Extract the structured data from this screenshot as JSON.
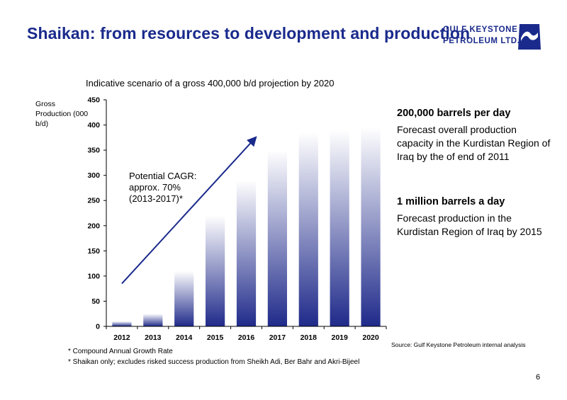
{
  "page": {
    "title": "Shaikan: from resources to development and production",
    "logo": {
      "line1": "GULF KEYSTONE",
      "line2": "PETROLEUM LTD."
    },
    "page_number": "6"
  },
  "side_panel": {
    "block1_heading": "200,000 barrels per day",
    "block1_text": "Forecast overall production capacity in the Kurdistan Region of Iraq by the of end of 2011",
    "block2_heading": "1 million barrels a day",
    "block2_text": "Forecast production in the Kurdistan Region of Iraq by 2015"
  },
  "source": "Source: Gulf Keystone Petroleum internal analysis",
  "footnotes": [
    "* Compound Annual Growth Rate",
    "* Shaikan only; excludes risked success production from Sheikh Adi, Ber Bahr and Akri-Bijeel"
  ],
  "chart_data": {
    "type": "bar",
    "title": "Indicative scenario of a gross 400,000 b/d projection by 2020",
    "ylabel": "Gross Production (000 b/d)",
    "xlabel": "",
    "categories": [
      "2012",
      "2013",
      "2014",
      "2015",
      "2016",
      "2017",
      "2018",
      "2019",
      "2020"
    ],
    "values": [
      10,
      25,
      110,
      220,
      290,
      350,
      385,
      390,
      395
    ],
    "ylim": [
      0,
      450
    ],
    "yticks": [
      0,
      50,
      100,
      150,
      200,
      250,
      300,
      350,
      400,
      450
    ],
    "grid": false,
    "bar_color": "#1f2a8a",
    "annotation": {
      "text": [
        "Potential CAGR:",
        "approx. 70%",
        "(2013-2017)*"
      ],
      "arrow_from": [
        "2012",
        85
      ],
      "arrow_to": [
        "2016",
        375
      ]
    }
  }
}
